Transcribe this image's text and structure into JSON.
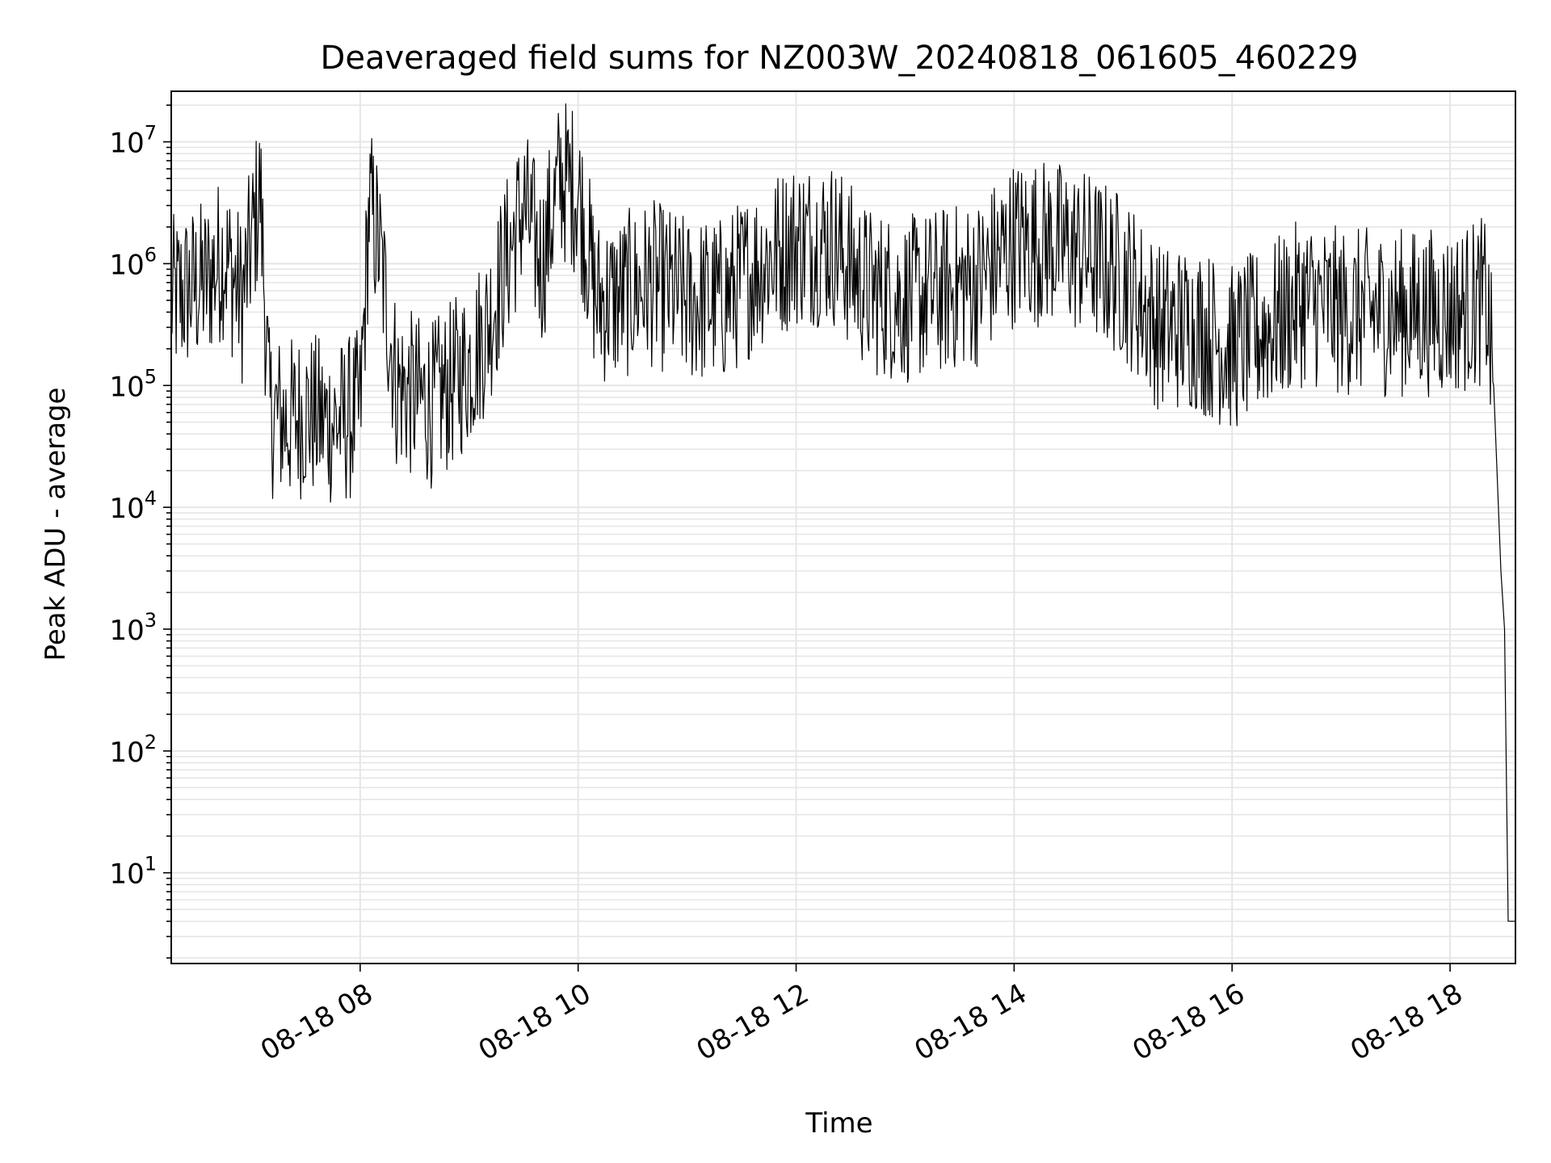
{
  "chart_data": {
    "type": "line",
    "title": "Deaveraged field sums for NZ003W_20240818_061605_460229",
    "xlabel": "Time",
    "ylabel": "Peak ADU - average",
    "yscale": "log",
    "ylim": [
      1.8,
      26000000
    ],
    "xlim": [
      "2024-08-18 06:16",
      "2024-08-18 18:36"
    ],
    "grid": true,
    "line_color": "#000000",
    "grid_color": "#e6e6e6",
    "x_ticks": [
      {
        "value": "2024-08-18 08:00",
        "label": "08-18 08"
      },
      {
        "value": "2024-08-18 10:00",
        "label": "08-18 10"
      },
      {
        "value": "2024-08-18 12:00",
        "label": "08-18 12"
      },
      {
        "value": "2024-08-18 14:00",
        "label": "08-18 14"
      },
      {
        "value": "2024-08-18 16:00",
        "label": "08-18 16"
      },
      {
        "value": "2024-08-18 18:00",
        "label": "08-18 18"
      }
    ],
    "y_ticks": [
      {
        "value": 10,
        "base": "10",
        "exp": "1"
      },
      {
        "value": 100,
        "base": "10",
        "exp": "2"
      },
      {
        "value": 1000,
        "base": "10",
        "exp": "3"
      },
      {
        "value": 10000,
        "base": "10",
        "exp": "4"
      },
      {
        "value": 100000,
        "base": "10",
        "exp": "5"
      },
      {
        "value": 1000000,
        "base": "10",
        "exp": "6"
      },
      {
        "value": 10000000,
        "base": "10",
        "exp": "7"
      }
    ],
    "series": [
      {
        "points": [
          [
            "2024-08-18 06:16",
            500000
          ],
          [
            "2024-08-18 06:25",
            600000
          ],
          [
            "2024-08-18 06:35",
            700000
          ],
          [
            "2024-08-18 06:45",
            1200000
          ],
          [
            "2024-08-18 06:55",
            500000
          ],
          [
            "2024-08-18 07:05",
            4000000
          ],
          [
            "2024-08-18 07:10",
            60000
          ],
          [
            "2024-08-18 07:20",
            50000
          ],
          [
            "2024-08-18 07:30",
            60000
          ],
          [
            "2024-08-18 07:40",
            50000
          ],
          [
            "2024-08-18 07:50",
            50000
          ],
          [
            "2024-08-18 08:00",
            60000
          ],
          [
            "2024-08-18 08:05",
            3000000
          ],
          [
            "2024-08-18 08:10",
            1500000
          ],
          [
            "2024-08-18 08:20",
            100000
          ],
          [
            "2024-08-18 08:30",
            80000
          ],
          [
            "2024-08-18 08:40",
            70000
          ],
          [
            "2024-08-18 08:50",
            100000
          ],
          [
            "2024-08-18 09:00",
            150000
          ],
          [
            "2024-08-18 09:10",
            300000
          ],
          [
            "2024-08-18 09:20",
            1000000
          ],
          [
            "2024-08-18 09:30",
            3000000
          ],
          [
            "2024-08-18 09:40",
            1000000
          ],
          [
            "2024-08-18 09:50",
            5000000
          ],
          [
            "2024-08-18 10:00",
            4000000
          ],
          [
            "2024-08-18 10:10",
            500000
          ],
          [
            "2024-08-18 10:20",
            500000
          ],
          [
            "2024-08-18 10:40",
            700000
          ],
          [
            "2024-08-18 11:00",
            500000
          ],
          [
            "2024-08-18 11:20",
            500000
          ],
          [
            "2024-08-18 11:40",
            1000000
          ],
          [
            "2024-08-18 12:00",
            1500000
          ],
          [
            "2024-08-18 12:20",
            1500000
          ],
          [
            "2024-08-18 12:40",
            600000
          ],
          [
            "2024-08-18 13:00",
            500000
          ],
          [
            "2024-08-18 13:20",
            600000
          ],
          [
            "2024-08-18 13:40",
            700000
          ],
          [
            "2024-08-18 14:00",
            1500000
          ],
          [
            "2024-08-18 14:20",
            1500000
          ],
          [
            "2024-08-18 14:40",
            1200000
          ],
          [
            "2024-08-18 15:00",
            800000
          ],
          [
            "2024-08-18 15:20",
            300000
          ],
          [
            "2024-08-18 15:40",
            300000
          ],
          [
            "2024-08-18 16:00",
            200000
          ],
          [
            "2024-08-18 16:20",
            300000
          ],
          [
            "2024-08-18 16:40",
            500000
          ],
          [
            "2024-08-18 17:00",
            400000
          ],
          [
            "2024-08-18 17:20",
            400000
          ],
          [
            "2024-08-18 17:40",
            400000
          ],
          [
            "2024-08-18 18:00",
            400000
          ],
          [
            "2024-08-18 18:20",
            500000
          ],
          [
            "2024-08-18 18:24",
            100000
          ],
          [
            "2024-08-18 18:28",
            3000
          ],
          [
            "2024-08-18 18:30",
            1000
          ],
          [
            "2024-08-18 18:32",
            4
          ],
          [
            "2024-08-18 18:36",
            4
          ]
        ]
      }
    ]
  }
}
